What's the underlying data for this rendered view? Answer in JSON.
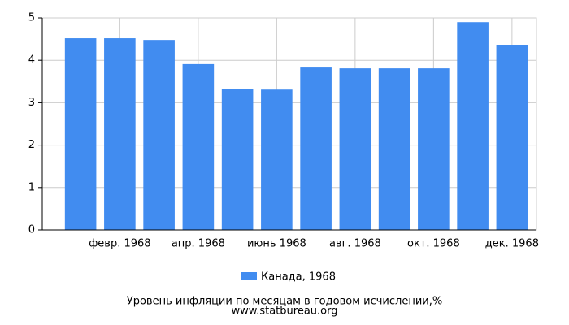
{
  "chart_data": {
    "type": "bar",
    "title": "Уровень инфляции по месяцам в годовом исчислении,%",
    "source": "www.statbureau.org",
    "categories": [
      null,
      "февр. 1968",
      null,
      "апр. 1968",
      null,
      "июнь 1968",
      null,
      "авг. 1968",
      null,
      "окт. 1968",
      null,
      "дек. 1968"
    ],
    "series": [
      {
        "name": "Канада, 1968",
        "color": "#418cf0",
        "values": [
          4.52,
          4.52,
          4.48,
          3.91,
          3.33,
          3.31,
          3.83,
          3.81,
          3.81,
          3.81,
          4.9,
          4.35
        ]
      }
    ],
    "ylim": [
      0,
      5
    ],
    "yticks": [
      0,
      1,
      2,
      3,
      4,
      5
    ],
    "grid": true
  }
}
